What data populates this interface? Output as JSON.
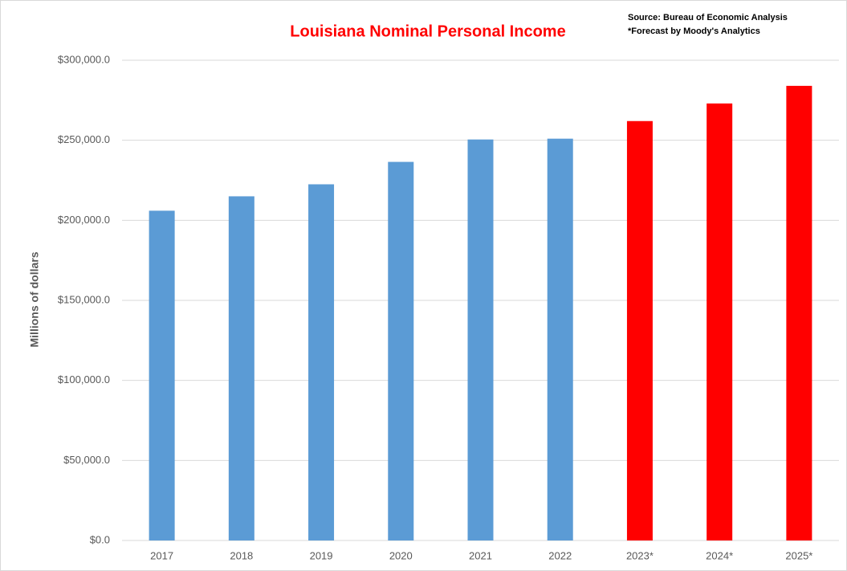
{
  "chart_data": {
    "type": "bar",
    "title": "Louisiana Nominal Personal Income",
    "annotations": [
      "Source: Bureau of Economic Analysis",
      "*Forecast by Moody's Analytics"
    ],
    "y_label": "Millions of dollars",
    "categories": [
      "2017",
      "2018",
      "2019",
      "2020",
      "2021",
      "2022",
      "2023*",
      "2024*",
      "2025*"
    ],
    "values": [
      206000,
      215000,
      222500,
      236500,
      250500,
      251000,
      262000,
      273000,
      284000
    ],
    "colors": [
      "#5b9bd5",
      "#5b9bd5",
      "#5b9bd5",
      "#5b9bd5",
      "#5b9bd5",
      "#5b9bd5",
      "#ff0000",
      "#ff0000",
      "#ff0000"
    ],
    "ylim": [
      0,
      300000
    ],
    "yticks": [
      {
        "value": 0,
        "label": "$0.0"
      },
      {
        "value": 50000,
        "label": "$50,000.0"
      },
      {
        "value": 100000,
        "label": "$100,000.0"
      },
      {
        "value": 150000,
        "label": "$150,000.0"
      },
      {
        "value": 200000,
        "label": "$200,000.0"
      },
      {
        "value": 250000,
        "label": "$250,000.0"
      },
      {
        "value": 300000,
        "label": "$300,000.0"
      }
    ],
    "grid": true
  }
}
